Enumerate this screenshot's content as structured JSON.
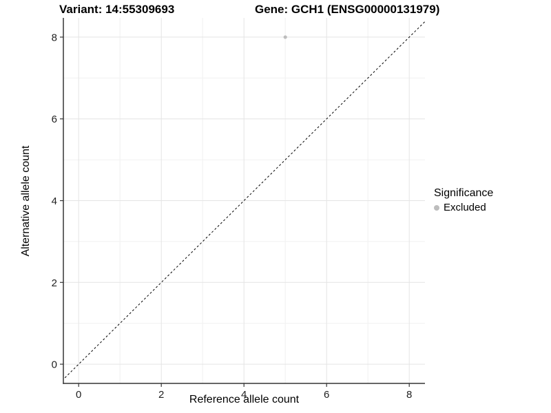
{
  "figure": {
    "title_left": "Variant: 14:55309693",
    "title_right": "Gene: GCH1 (ENSG00000131979)"
  },
  "axes": {
    "x_title": "Reference allele count",
    "y_title": "Alternative allele count"
  },
  "legend": {
    "title": "Significance",
    "items": [
      {
        "label": "Excluded",
        "color": "#bdbdbd",
        "marker": "circle-icon"
      }
    ]
  },
  "chart_data": {
    "type": "scatter",
    "titles": [
      "Variant: 14:55309693",
      "Gene: GCH1 (ENSG00000131979)"
    ],
    "xlabel": "Reference allele count",
    "ylabel": "Alternative allele count",
    "xlim": [
      -0.37,
      8.38
    ],
    "ylim": [
      -0.47,
      8.47
    ],
    "x_ticks": [
      0,
      2,
      4,
      6,
      8
    ],
    "y_ticks": [
      0,
      2,
      4,
      6,
      8
    ],
    "x_minor_ticks": [
      1,
      3,
      5,
      7
    ],
    "y_minor_ticks": [
      1,
      3,
      5,
      7
    ],
    "grid": "on",
    "legend_position": "right",
    "legend_title": "Significance",
    "series": [
      {
        "name": "Excluded",
        "color": "#bdbdbd",
        "marker_radius": 2.6,
        "points": [
          {
            "x": 5,
            "y": 8
          }
        ]
      }
    ],
    "reference_line": {
      "slope": 1,
      "intercept": 0,
      "style": "dashed",
      "color": "#000000"
    },
    "colors": {
      "background": "#ffffff",
      "major_grid": "#e4e4e4",
      "minor_grid": "#f1f1f1",
      "axis_line": "#333333",
      "tick_mark": "#333333",
      "tick_label": "#1f1f1f"
    }
  }
}
